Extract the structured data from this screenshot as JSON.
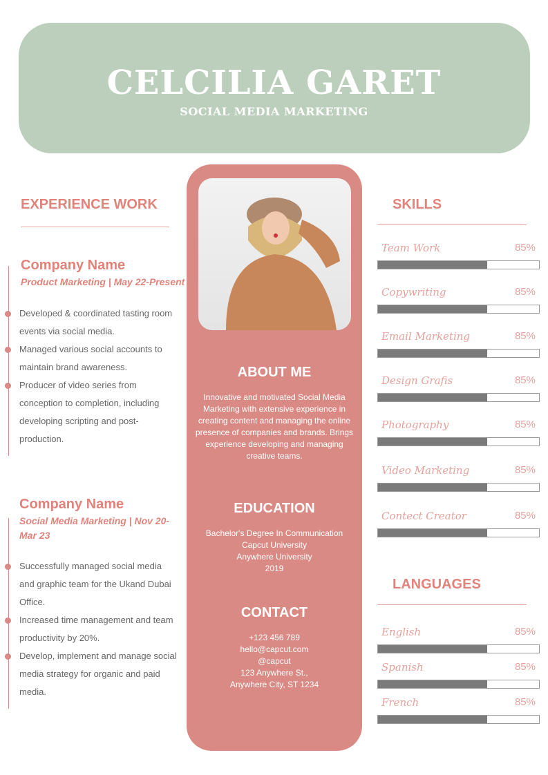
{
  "header": {
    "name": "CELCILIA GARET",
    "role": "SOCIAL MEDIA MARKETING"
  },
  "experience": {
    "title": "EXPERIENCE WORK",
    "jobs": [
      {
        "company": "Company Name",
        "subtitle": "Product Marketing | May 22-Present",
        "bullets": [
          "Developed & coordinated tasting room events via social media.",
          "Managed various social accounts to maintain brand awareness.",
          "Producer of video series from conception to completion, including developing scripting and post-production."
        ]
      },
      {
        "company": "Company Name",
        "subtitle": "Social Media Marketing | Nov 20-Mar 23",
        "bullets": [
          "Successfully managed social media and graphic team for the Ukand Dubai Office.",
          "Increased time management and team productivity by 20%.",
          "Develop, implement and manage social media strategy for organic and paid media."
        ]
      }
    ]
  },
  "about": {
    "title": "ABOUT ME",
    "text": "Innovative and motivated Social Media Marketing with extensive experience in creating content and managing the online presence of companies and brands. Brings experience developing and managing creative teams."
  },
  "education": {
    "title": "EDUCATION",
    "lines": [
      "Bachelor's Degree In Communication",
      "Capcut University",
      "Anywhere University",
      "2019"
    ]
  },
  "contact": {
    "title": "CONTACT",
    "lines": [
      "+123  456 789",
      "hello@capcut.com",
      "@capcut",
      "123 Anywhere St.,",
      "Anywhere City, ST 1234"
    ]
  },
  "skills": {
    "title": "SKILLS",
    "items": [
      {
        "label": "Team Work",
        "pct": "85%",
        "fill": 68
      },
      {
        "label": "Copywriting",
        "pct": "85%",
        "fill": 68
      },
      {
        "label": "Email Marketing",
        "pct": "85%",
        "fill": 68
      },
      {
        "label": "Design Grafis",
        "pct": "85%",
        "fill": 68
      },
      {
        "label": "Photography",
        "pct": "85%",
        "fill": 68
      },
      {
        "label": "Video Marketing",
        "pct": "85%",
        "fill": 68
      },
      {
        "label": "Contect Creator",
        "pct": "85%",
        "fill": 68
      }
    ]
  },
  "languages": {
    "title": "LANGUAGES",
    "items": [
      {
        "label": "English",
        "pct": "85%",
        "fill": 68
      },
      {
        "label": "Spanish",
        "pct": "85%",
        "fill": 68
      },
      {
        "label": "French",
        "pct": "85%",
        "fill": 68
      }
    ]
  },
  "colors": {
    "header": "#bccfbc",
    "accent": "#d98a84",
    "bar": "#7a7a7a"
  }
}
